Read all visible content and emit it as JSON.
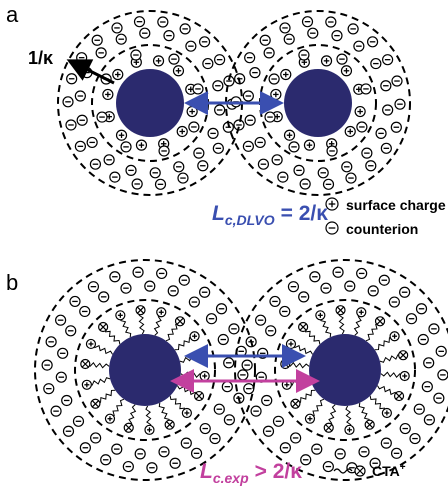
{
  "panel_a": {
    "label": "a",
    "debye_label": "1/κ",
    "length_label": {
      "symbol": "L",
      "subscript": "c,DLVO",
      "relation": "= 2/κ"
    },
    "legend": [
      "surface charge",
      "counterion"
    ]
  },
  "panel_b": {
    "label": "b",
    "length_label": {
      "symbol": "L",
      "subscript": "c.exp",
      "relation": "> 2/κ"
    },
    "legend": {
      "text": "CTA",
      "superscript": "+"
    }
  }
}
